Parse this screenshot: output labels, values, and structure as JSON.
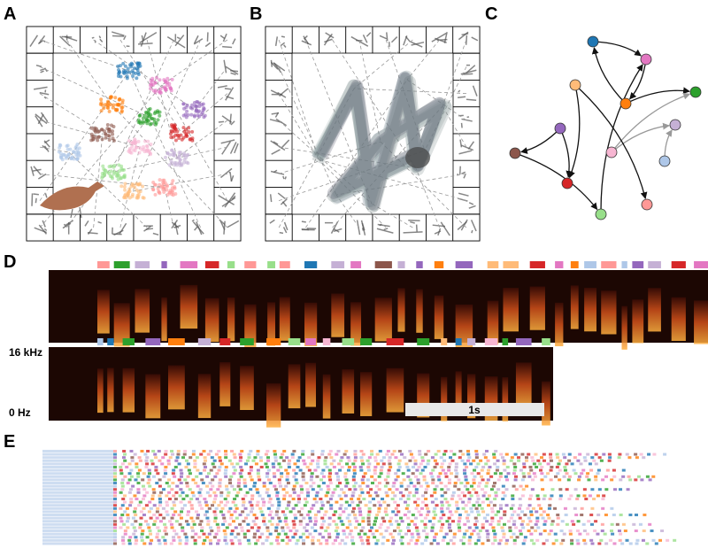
{
  "panels": {
    "a": "A",
    "b": "B",
    "c": "C",
    "d": "D",
    "e": "E"
  },
  "spectrogram": {
    "freq_top": "16 kHz",
    "freq_bottom": "0 Hz",
    "scale_bar": "1s"
  }
}
